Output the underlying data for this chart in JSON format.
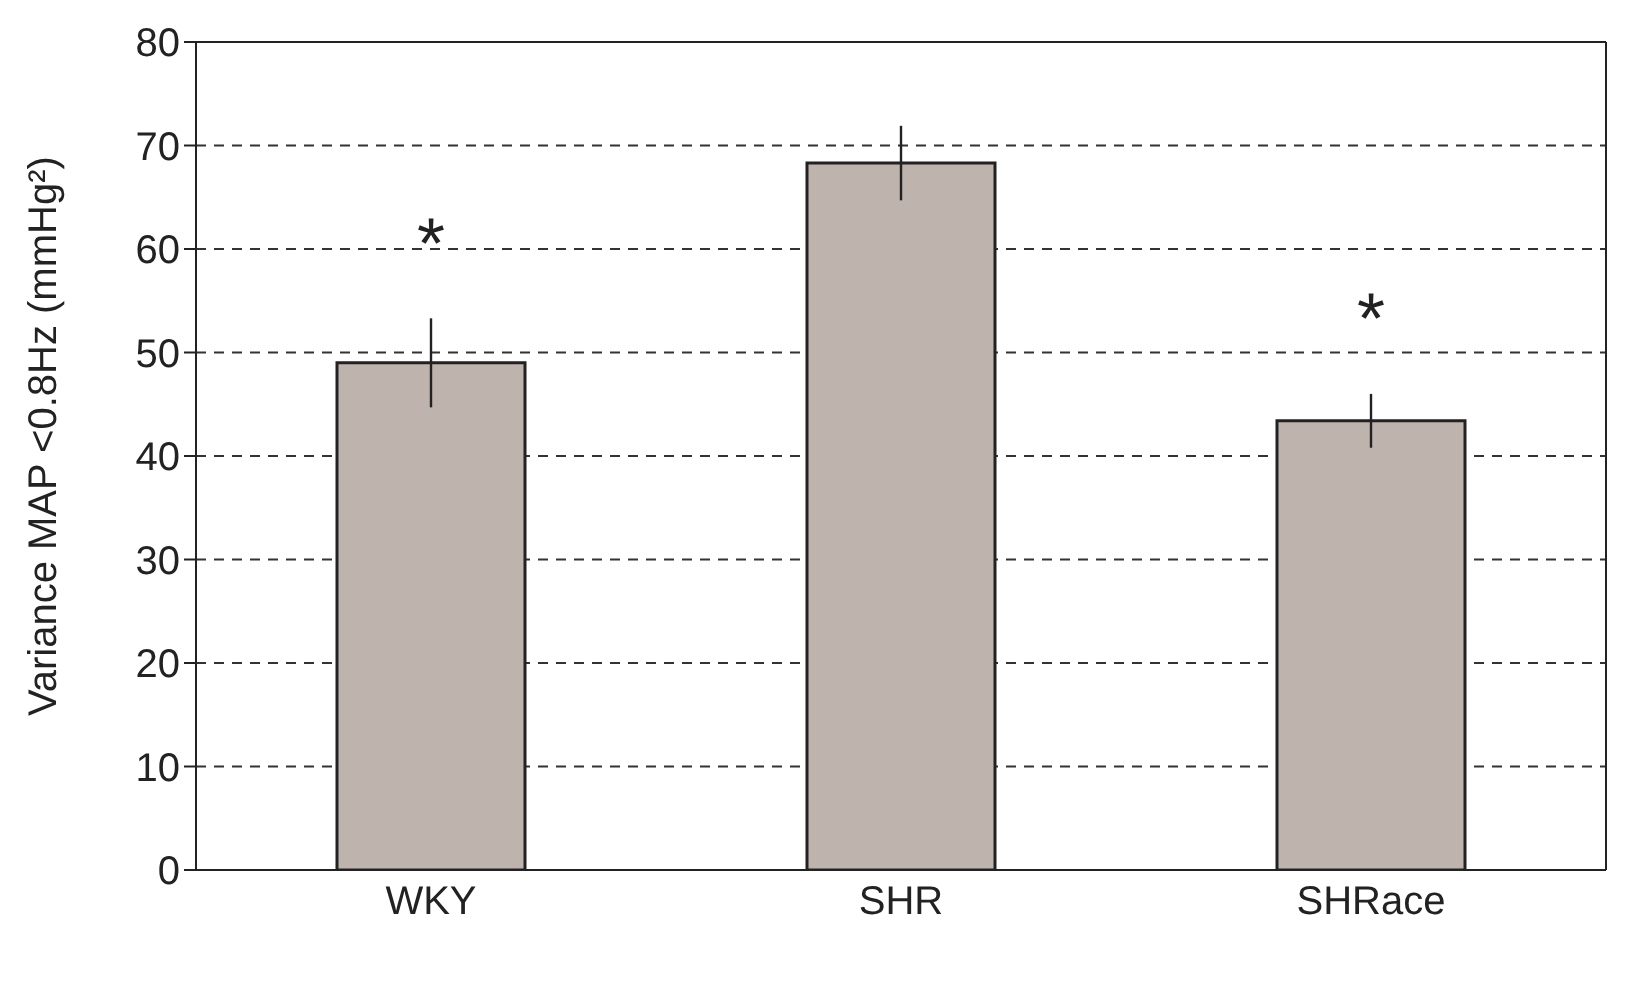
{
  "chart_data": {
    "type": "bar",
    "ylabel": "Variance MAP <0.8Hz (mmHg²)",
    "categories": [
      "WKY",
      "SHR",
      "SHRace"
    ],
    "values": [
      49,
      68.3,
      43.4
    ],
    "errors": [
      4.3,
      3.6,
      2.6
    ],
    "color": "#bfb3ae",
    "ylim": [
      0,
      80
    ],
    "yticks": [
      0,
      10,
      20,
      30,
      40,
      50,
      60,
      70,
      80
    ],
    "grid": "y",
    "annotations": [
      {
        "text": "*",
        "x": "WKY",
        "y": 53.3
      },
      {
        "text": "*",
        "x": "SHRace",
        "y": 46
      }
    ]
  }
}
